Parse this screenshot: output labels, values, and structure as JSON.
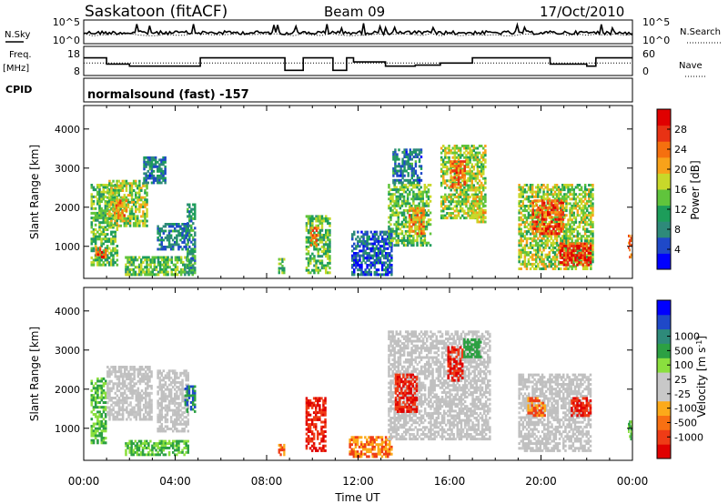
{
  "header": {
    "station": "Saskatoon (fitACF)",
    "beam": "Beam 09",
    "date": "17/Oct/2010"
  },
  "side_labels": {
    "nsky": "N.Sky",
    "freq": "Freq.",
    "freq_unit": "[MHz]",
    "cpid": "CPID",
    "nsearch": "N.Search",
    "nave": "Nave"
  },
  "cpid_text": "normalsound (fast) -157",
  "colors": {
    "power_scale": [
      "#0000ff",
      "#1f49c8",
      "#2e8a7a",
      "#1d9d5a",
      "#60c43c",
      "#c8d82a",
      "#f8a21a",
      "#f5700f",
      "#e83214",
      "#e00000"
    ],
    "velocity_scale": [
      "#e00000",
      "#ef3c16",
      "#f87012",
      "#fcaa1a",
      "#c8c8c8",
      "#c8c8c8",
      "#8adf3e",
      "#2ca043",
      "#2e8a7a",
      "#1f49c8",
      "#0000ff"
    ],
    "ground_scatter": "#c0c0c0"
  },
  "chart_data": [
    {
      "type": "line",
      "title": "N.Sky / N.Search",
      "y_left_ticks": [
        "10^5",
        "10^0"
      ],
      "y_right_ticks": [
        "10^5",
        "10^0"
      ],
      "x": [
        "00:00",
        "04:00",
        "08:00",
        "12:00",
        "16:00",
        "20:00",
        "00:00"
      ]
    },
    {
      "type": "line",
      "title": "Freq. / Nave",
      "y_left_ticks": [
        "18",
        "8"
      ],
      "y_right_ticks": [
        "60",
        "0"
      ],
      "series": [
        {
          "name": "Freq.",
          "unit": "MHz",
          "x": [
            0,
            0.6,
            1.0,
            2.0,
            4.6,
            5.1,
            8.6,
            8.8,
            9.6,
            10.6,
            10.9,
            11.5,
            11.8,
            13.2,
            14.5,
            15.6,
            17.0,
            17.7,
            19.2,
            20.4,
            22.0,
            22.4,
            24
          ],
          "y": [
            14.5,
            14.5,
            11.5,
            10.5,
            10.5,
            14.5,
            14.5,
            8.5,
            14.5,
            14.5,
            8.5,
            14.5,
            12.5,
            10.5,
            11.0,
            12.0,
            14.5,
            14.5,
            14.5,
            11.5,
            10.5,
            14.5,
            14.5
          ]
        },
        {
          "name": "Nave",
          "x": [
            0,
            24
          ],
          "y": [
            30,
            30
          ]
        }
      ]
    },
    {
      "type": "heatmap",
      "title": "Power",
      "xlabel": "Time UT",
      "ylabel": "Slant Range [km]",
      "colorbar_label": "Power [dB]",
      "x_ticks": [
        "00:00",
        "04:00",
        "08:00",
        "12:00",
        "16:00",
        "20:00",
        "00:00"
      ],
      "xlim": [
        0,
        24
      ],
      "ylim": [
        180,
        4600
      ],
      "y_ticks": [
        1000,
        2000,
        3000,
        4000
      ],
      "colorbar_ticks": [
        4,
        8,
        12,
        16,
        20,
        24,
        28
      ],
      "colorbar_range": [
        0,
        32
      ],
      "patches": [
        {
          "t0": 0.3,
          "t1": 1.5,
          "r0": 500,
          "r1": 2600,
          "v": 14
        },
        {
          "t0": 0.5,
          "t1": 1.0,
          "r0": 700,
          "r1": 1000,
          "v": 26
        },
        {
          "t0": 1.0,
          "t1": 2.8,
          "r0": 1500,
          "r1": 2700,
          "v": 16
        },
        {
          "t0": 1.3,
          "t1": 1.9,
          "r0": 1700,
          "r1": 2200,
          "v": 22
        },
        {
          "t0": 2.6,
          "t1": 3.6,
          "r0": 2600,
          "r1": 3300,
          "v": 8
        },
        {
          "t0": 1.8,
          "t1": 4.8,
          "r0": 250,
          "r1": 750,
          "v": 14
        },
        {
          "t0": 3.2,
          "t1": 4.6,
          "r0": 900,
          "r1": 1600,
          "v": 8
        },
        {
          "t0": 4.5,
          "t1": 4.9,
          "r0": 300,
          "r1": 2100,
          "v": 10
        },
        {
          "t0": 8.5,
          "t1": 8.8,
          "r0": 300,
          "r1": 700,
          "v": 14
        },
        {
          "t0": 9.7,
          "t1": 10.8,
          "r0": 300,
          "r1": 1800,
          "v": 14
        },
        {
          "t0": 9.9,
          "t1": 10.3,
          "r0": 1000,
          "r1": 1500,
          "v": 24
        },
        {
          "t0": 11.7,
          "t1": 13.5,
          "r0": 250,
          "r1": 1400,
          "v": 6
        },
        {
          "t0": 13.3,
          "t1": 15.2,
          "r0": 1000,
          "r1": 2600,
          "v": 14
        },
        {
          "t0": 14.2,
          "t1": 14.9,
          "r0": 1300,
          "r1": 2000,
          "v": 22
        },
        {
          "t0": 13.5,
          "t1": 14.8,
          "r0": 2600,
          "r1": 3500,
          "v": 8
        },
        {
          "t0": 15.6,
          "t1": 17.6,
          "r0": 1700,
          "r1": 3600,
          "v": 16
        },
        {
          "t0": 16.0,
          "t1": 16.7,
          "r0": 2500,
          "r1": 3200,
          "v": 24
        },
        {
          "t0": 17.0,
          "t1": 17.6,
          "r0": 1600,
          "r1": 2300,
          "v": 18
        },
        {
          "t0": 19.0,
          "t1": 22.3,
          "r0": 400,
          "r1": 2600,
          "v": 16
        },
        {
          "t0": 19.6,
          "t1": 21.0,
          "r0": 1300,
          "r1": 2200,
          "v": 26
        },
        {
          "t0": 20.8,
          "t1": 22.2,
          "r0": 500,
          "r1": 1100,
          "v": 28
        },
        {
          "t0": 23.8,
          "t1": 24.0,
          "r0": 700,
          "r1": 1300,
          "v": 24
        }
      ]
    },
    {
      "type": "heatmap",
      "title": "Velocity",
      "xlabel": "Time UT",
      "ylabel": "Slant Range [km]",
      "colorbar_label": "Velocity [m s^-1]",
      "x_ticks": [
        "00:00",
        "04:00",
        "08:00",
        "12:00",
        "16:00",
        "20:00",
        "00:00"
      ],
      "xlim": [
        0,
        24
      ],
      "ylim": [
        180,
        4600
      ],
      "y_ticks": [
        1000,
        2000,
        3000,
        4000
      ],
      "colorbar_ticks": [
        -1000,
        -500,
        -100,
        -25,
        25,
        100,
        500,
        1000
      ],
      "patches": [
        {
          "t0": 0.3,
          "t1": 1.0,
          "r0": 600,
          "r1": 2300,
          "v": 100
        },
        {
          "t0": 1.0,
          "t1": 3.0,
          "r0": 1200,
          "r1": 2600,
          "v": 0,
          "gs": true
        },
        {
          "t0": 1.8,
          "t1": 4.6,
          "r0": 300,
          "r1": 700,
          "v": 100
        },
        {
          "t0": 3.2,
          "t1": 4.6,
          "r0": 900,
          "r1": 2500,
          "v": 0,
          "gs": true
        },
        {
          "t0": 4.4,
          "t1": 4.9,
          "r0": 1400,
          "r1": 2100,
          "v": 500
        },
        {
          "t0": 8.5,
          "t1": 8.8,
          "r0": 300,
          "r1": 600,
          "v": -100
        },
        {
          "t0": 9.7,
          "t1": 10.6,
          "r0": 400,
          "r1": 1800,
          "v": -500
        },
        {
          "t0": 11.6,
          "t1": 13.5,
          "r0": 250,
          "r1": 800,
          "v": -100
        },
        {
          "t0": 13.3,
          "t1": 17.8,
          "r0": 700,
          "r1": 3500,
          "v": 0,
          "gs": true
        },
        {
          "t0": 13.6,
          "t1": 14.6,
          "r0": 1400,
          "r1": 2400,
          "v": -500
        },
        {
          "t0": 15.9,
          "t1": 16.6,
          "r0": 2200,
          "r1": 3100,
          "v": -500
        },
        {
          "t0": 16.6,
          "t1": 17.4,
          "r0": 2800,
          "r1": 3300,
          "v": 200
        },
        {
          "t0": 19.0,
          "t1": 22.2,
          "r0": 400,
          "r1": 2400,
          "v": 0,
          "gs": true
        },
        {
          "t0": 19.4,
          "t1": 20.2,
          "r0": 1300,
          "r1": 1800,
          "v": -100
        },
        {
          "t0": 21.3,
          "t1": 22.2,
          "r0": 1300,
          "r1": 1800,
          "v": -500
        },
        {
          "t0": 23.8,
          "t1": 24.0,
          "r0": 700,
          "r1": 1200,
          "v": 100
        }
      ]
    }
  ]
}
